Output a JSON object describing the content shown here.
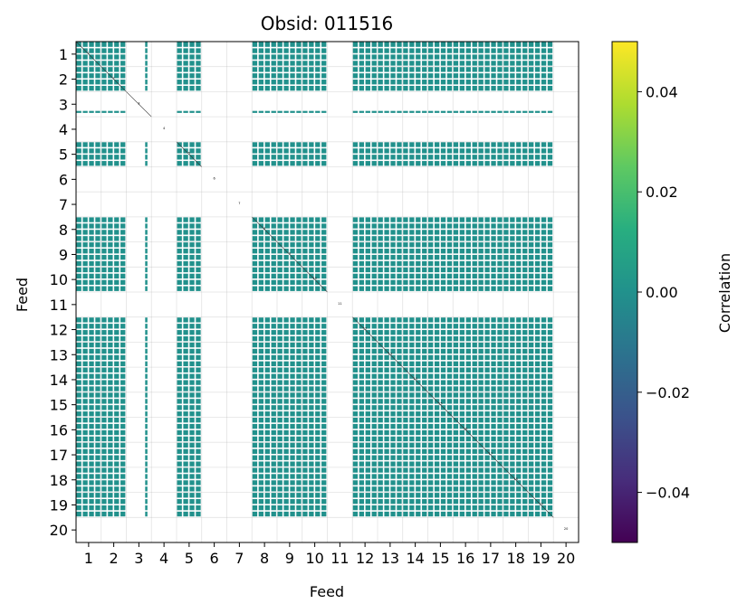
{
  "chart_data": {
    "type": "heatmap",
    "title": "Obsid: 011516",
    "xlabel": "Feed",
    "ylabel": "Feed",
    "x_ticks": [
      "1",
      "2",
      "3",
      "4",
      "5",
      "6",
      "7",
      "8",
      "9",
      "10",
      "11",
      "12",
      "13",
      "14",
      "15",
      "16",
      "17",
      "18",
      "19",
      "20"
    ],
    "y_ticks": [
      "1",
      "2",
      "3",
      "4",
      "5",
      "6",
      "7",
      "8",
      "9",
      "10",
      "11",
      "12",
      "13",
      "14",
      "15",
      "16",
      "17",
      "18",
      "19",
      "20"
    ],
    "n_feeds": 20,
    "sub_bands": 4,
    "active_feeds": [
      1,
      2,
      5,
      8,
      9,
      10,
      12,
      13,
      14,
      15,
      16,
      17,
      18,
      19
    ],
    "partial_feeds": [
      3
    ],
    "empty_feeds": [
      4,
      6,
      7,
      11,
      20
    ],
    "value_for_active_pairs": 0.0,
    "diagonal_labels": [
      "1",
      "2",
      "3",
      "4",
      "5",
      "6",
      "7",
      "8",
      "9",
      "10",
      "11",
      "12",
      "13",
      "14",
      "15",
      "16",
      "17",
      "18",
      "19",
      "20"
    ],
    "grid": true,
    "colorbar": {
      "label": "Correlation",
      "colormap": "viridis",
      "vmin": -0.05,
      "vmax": 0.05,
      "ticks": [
        "0.04",
        "0.02",
        "0.00",
        "−0.02",
        "−0.04"
      ],
      "tick_values": [
        0.04,
        0.02,
        0.0,
        -0.02,
        -0.04
      ],
      "colors": [
        "#440154",
        "#472d7b",
        "#3b528b",
        "#2c728e",
        "#21918c",
        "#28ae80",
        "#5ec962",
        "#addc30",
        "#fde725"
      ]
    },
    "cell_color": "#21918c"
  }
}
